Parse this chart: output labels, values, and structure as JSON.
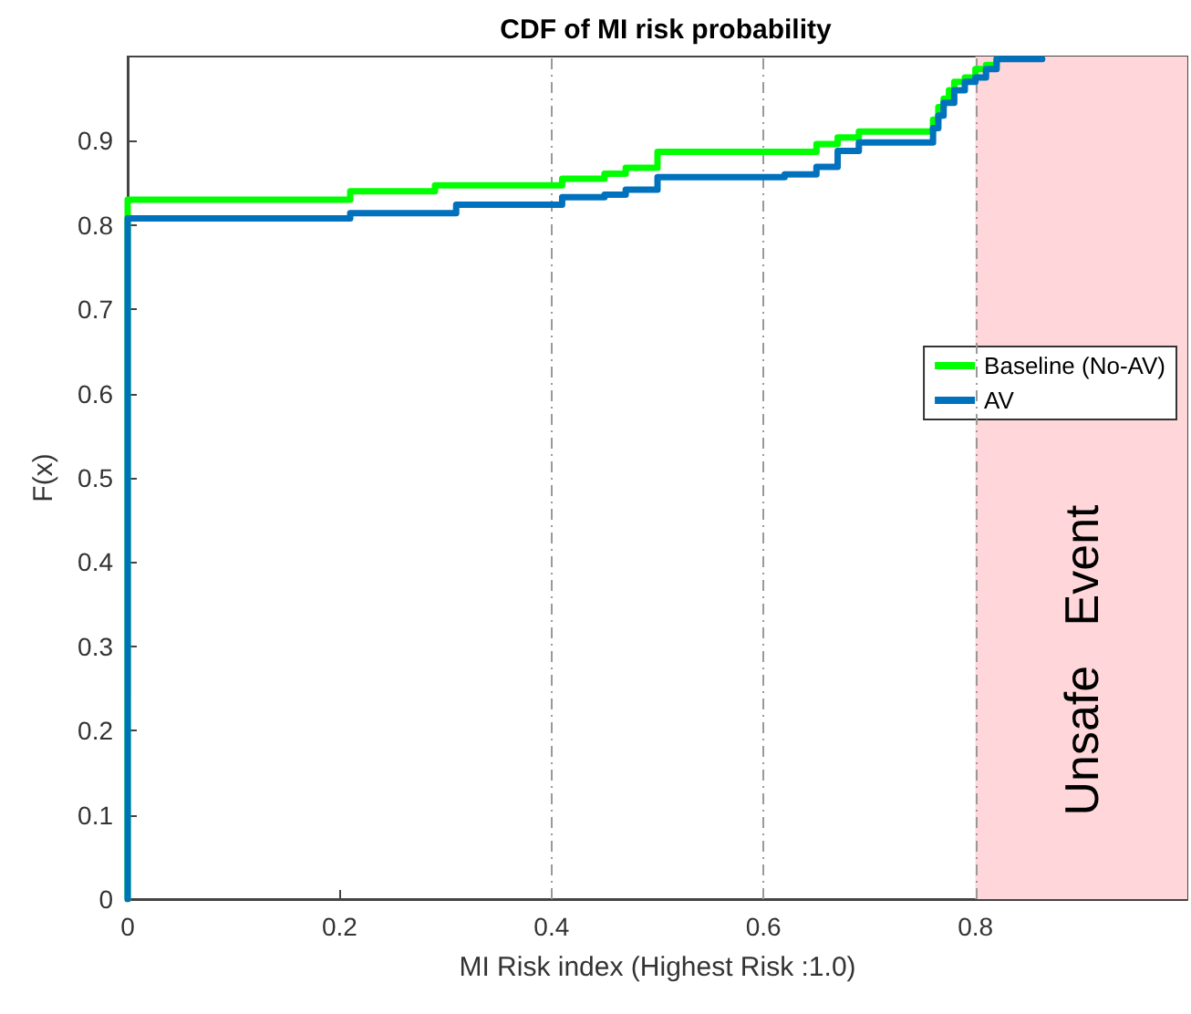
{
  "chart_data": {
    "type": "step",
    "title": "CDF of MI risk probability",
    "xlabel": "MI Risk index (Highest Risk :1.0)",
    "ylabel": "F(x)",
    "xlim": [
      0,
      1
    ],
    "xticks": [
      0,
      0.2,
      0.4,
      0.6,
      0.8
    ],
    "ylim": [
      0,
      1
    ],
    "yticks": [
      0,
      0.1,
      0.2,
      0.3,
      0.4,
      0.5,
      0.6,
      0.7,
      0.8,
      0.9
    ],
    "grid": false,
    "legend": "right",
    "marker": "none",
    "line_style": "solid",
    "series": [
      {
        "name": "Baseline (No-AV)",
        "color": "#00ff00",
        "x": [
          0,
          0,
          0.21,
          0.29,
          0.41,
          0.45,
          0.47,
          0.5,
          0.65,
          0.67,
          0.69,
          0.76,
          0.765,
          0.77,
          0.775,
          0.78,
          0.79,
          0.8,
          0.81,
          0.82
        ],
        "values": [
          0,
          0.83,
          0.84,
          0.847,
          0.855,
          0.861,
          0.868,
          0.887,
          0.896,
          0.904,
          0.911,
          0.925,
          0.94,
          0.95,
          0.96,
          0.97,
          0.975,
          0.985,
          0.99,
          0.997
        ]
      },
      {
        "name": "AV",
        "color": "#0072bd",
        "x": [
          0,
          0,
          0.21,
          0.31,
          0.41,
          0.45,
          0.47,
          0.5,
          0.62,
          0.65,
          0.67,
          0.69,
          0.76,
          0.765,
          0.77,
          0.78,
          0.79,
          0.8,
          0.81,
          0.82,
          0.863
        ],
        "values": [
          0,
          0.808,
          0.814,
          0.824,
          0.833,
          0.836,
          0.842,
          0.857,
          0.86,
          0.869,
          0.888,
          0.898,
          0.915,
          0.93,
          0.945,
          0.96,
          0.97,
          0.975,
          0.985,
          0.997,
          0.997
        ]
      }
    ],
    "ref_lines": [
      {
        "axis": "x",
        "value": 0.4,
        "color": "#999999",
        "line_style": "dashed"
      },
      {
        "axis": "x",
        "value": 0.6,
        "color": "#999999",
        "line_style": "dashed"
      },
      {
        "axis": "x",
        "value": 0.8,
        "color": "#999999",
        "line_style": "dashed"
      }
    ],
    "bands": [
      {
        "axis": "x",
        "from": 0.8,
        "to": 1,
        "label": "Unsafe   Event",
        "color": "#ffd6d9"
      }
    ]
  }
}
